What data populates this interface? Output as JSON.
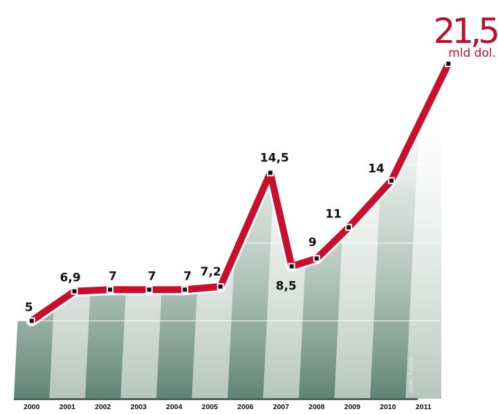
{
  "chart_data": {
    "type": "line",
    "title": "",
    "xlabel": "",
    "ylabel": "",
    "ylim": [
      0,
      21.5
    ],
    "grid": true,
    "legend": "none",
    "categories": [
      "2000",
      "2001",
      "2002",
      "2003",
      "2004",
      "2005",
      "2006",
      "2007",
      "2008",
      "2009",
      "2010",
      "2011"
    ],
    "points": [
      {
        "x": 2000.5,
        "value": 5,
        "label": "5"
      },
      {
        "x": 2001.7,
        "value": 6.9,
        "label": "6,9"
      },
      {
        "x": 2002.7,
        "value": 7,
        "label": "7"
      },
      {
        "x": 2003.8,
        "value": 7,
        "label": "7"
      },
      {
        "x": 2004.8,
        "value": 7,
        "label": "7"
      },
      {
        "x": 2005.8,
        "value": 7.2,
        "label": "7,2"
      },
      {
        "x": 2007.2,
        "value": 14.5,
        "label": "14,5"
      },
      {
        "x": 2007.8,
        "value": 8.5,
        "label": "8,5"
      },
      {
        "x": 2008.5,
        "value": 9,
        "label": "9"
      },
      {
        "x": 2009.4,
        "value": 11,
        "label": "11"
      },
      {
        "x": 2010.6,
        "value": 14,
        "label": "14"
      },
      {
        "x": 2012.2,
        "value": 21.5,
        "label": ""
      }
    ],
    "highlight": {
      "value": "21,5",
      "unit": "mld dol."
    },
    "source": "źródło: Forbes",
    "colors": {
      "line": "#c8102e",
      "accent": "#b5122f",
      "stripe_dark": "#6f8f83",
      "stripe_light": "#c9d6d0"
    }
  }
}
